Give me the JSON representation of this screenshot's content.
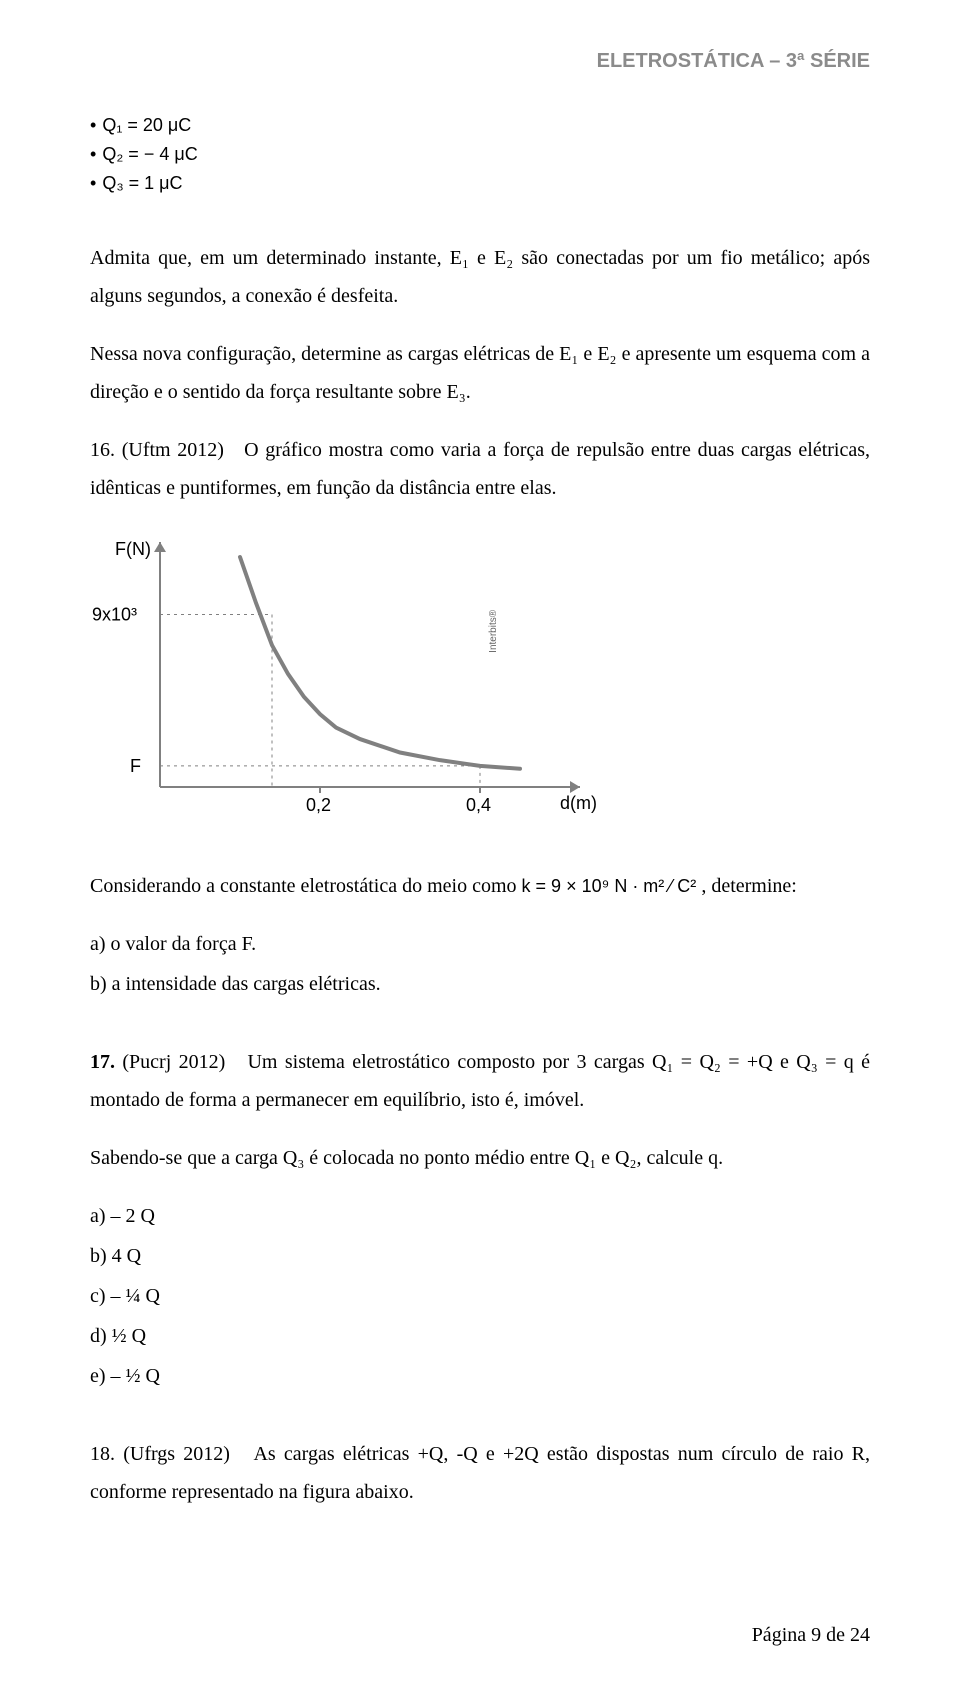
{
  "header": {
    "title": "ELETROSTÁTICA – 3ª SÉRIE"
  },
  "given": {
    "q1": "Q₁ = 20 μC",
    "q2": "Q₂ = − 4 μC",
    "q3": "Q₃ = 1 μC"
  },
  "p1": "Admita que, em um determinado instante, E₁ e E₂ são conectadas por um fio metálico; após alguns segundos, a conexão é desfeita.",
  "p2": "Nessa nova configuração, determine as cargas elétricas de E₁ e E₂ e apresente um esquema com a direção e o sentido da força resultante sobre E₃.",
  "q16": {
    "num": "16.",
    "src": "(Uftm 2012)",
    "text": "O gráfico mostra como varia a força de repulsão entre duas cargas elétricas, idênticas e puntiformes, em função da distância entre elas."
  },
  "chart": {
    "type": "line",
    "y_label": "F(N)",
    "x_label": "d(m)",
    "y_tick_label": "9x10³",
    "y_tick2_label": "F",
    "x_ticks": [
      "0,2",
      "0,4"
    ],
    "watermark": "Interbits®",
    "axis_color": "#808080",
    "curve_color": "#808080",
    "dash_color": "#808080",
    "bg": "#ffffff",
    "xlim": [
      0,
      0.5
    ],
    "ylim": [
      0,
      12000
    ],
    "curve_points": [
      [
        0.1,
        12000
      ],
      [
        0.12,
        9600
      ],
      [
        0.14,
        7400
      ],
      [
        0.16,
        5900
      ],
      [
        0.18,
        4700
      ],
      [
        0.2,
        3800
      ],
      [
        0.22,
        3100
      ],
      [
        0.25,
        2500
      ],
      [
        0.3,
        1800
      ],
      [
        0.35,
        1400
      ],
      [
        0.4,
        1100
      ],
      [
        0.45,
        950
      ]
    ],
    "dash_y_at_x": 0.14,
    "dash_y_value": 9000,
    "dash_lowF_x": 0.4,
    "dash_lowF_y": 1100
  },
  "q16b": {
    "lead": "Considerando a constante eletrostática do meio como ",
    "k_expr": "k = 9 × 10⁹ N · m² ⁄ C²",
    "tail": ", determine:",
    "a": "a) o valor da força F.",
    "b": "b) a intensidade das cargas elétricas."
  },
  "q17": {
    "num": "17.",
    "src": "(Pucrj 2012)",
    "text1": "Um sistema eletrostático composto por 3 cargas Q₁ = Q₂ = +Q e Q₃ = q é montado de forma a permanecer em equilíbrio, isto é, imóvel.",
    "text2": "Sabendo-se que a carga Q₃ é colocada no ponto médio entre Q₁ e Q₂, calcule q.",
    "opts": {
      "a": "a) – 2 Q",
      "b": "b) 4 Q",
      "c": "c) – ¼ Q",
      "d": "d) ½ Q",
      "e": "e) – ½ Q"
    }
  },
  "q18": {
    "num": "18.",
    "src": "(Ufrgs 2012)",
    "text": "As cargas elétricas +Q, -Q e +2Q estão dispostas num círculo de raio R, conforme representado na figura abaixo."
  },
  "footer": {
    "text": "Página 9 de 24"
  }
}
